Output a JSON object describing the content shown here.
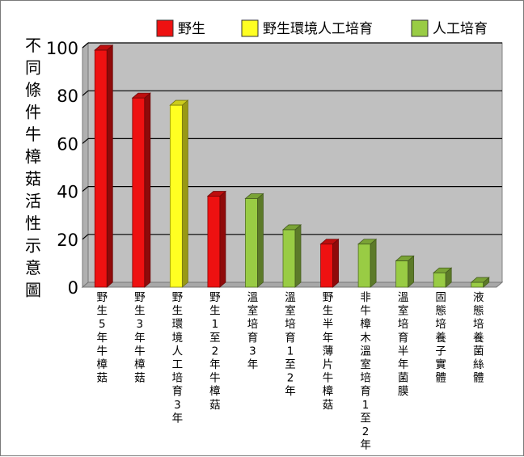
{
  "chart_data": {
    "type": "bar",
    "title": "",
    "ylabel": "不同條件牛樟菇活性示意圖",
    "xlabel": "",
    "ylim": [
      0,
      100
    ],
    "yticks": [
      0,
      20,
      40,
      60,
      80,
      100
    ],
    "grid": true,
    "legend_position": "top",
    "legend": [
      {
        "name": "野生",
        "color": "#ee1111"
      },
      {
        "name": "野生環境人工培育",
        "color": "#ffff22"
      },
      {
        "name": "人工培育",
        "color": "#99cc44"
      }
    ],
    "categories": [
      "野生5年牛樟菇",
      "野生3年牛樟菇",
      "野生環境人工培育3年",
      "野生1至2年牛樟菇",
      "溫室培育3年",
      "溫室培育1至2年",
      "野生半年薄片牛樟菇",
      "非牛樟木溫室培育1至2年",
      "溫室培育半年菌膜",
      "固態培養子實體",
      "液態培養菌絲體"
    ],
    "values": [
      99,
      79,
      76,
      38,
      37,
      24,
      18,
      18,
      11,
      6,
      2
    ],
    "groups": [
      "野生",
      "野生",
      "野生環境人工培育",
      "野生",
      "人工培育",
      "人工培育",
      "野生",
      "人工培育",
      "人工培育",
      "人工培育",
      "人工培育"
    ]
  }
}
